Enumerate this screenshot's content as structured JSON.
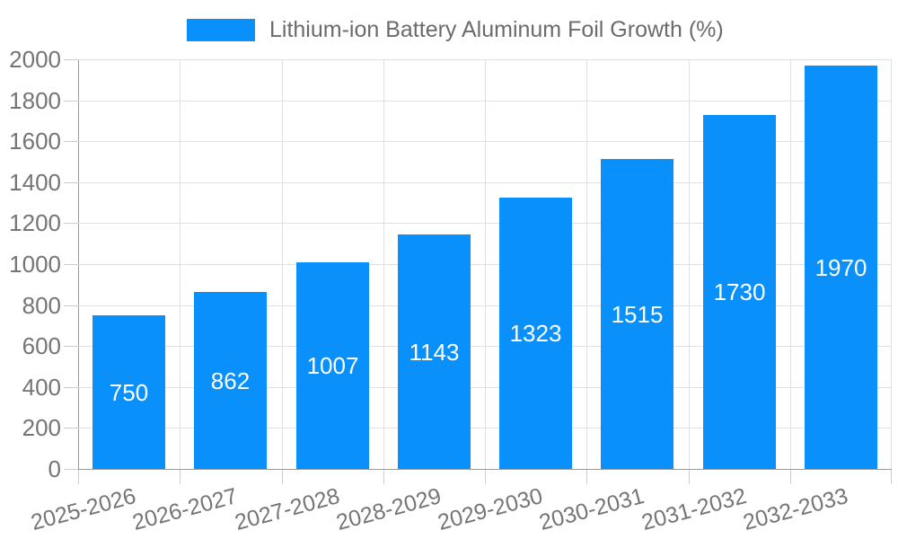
{
  "chart_data": {
    "type": "bar",
    "title": "Lithium-ion Battery Aluminum Foil Growth (%)",
    "categories": [
      "2025-2026",
      "2026-2027",
      "2027-2028",
      "2028-2029",
      "2029-2030",
      "2030-2031",
      "2031-2032",
      "2032-2033"
    ],
    "values": [
      750,
      862,
      1007,
      1143,
      1323,
      1515,
      1730,
      1970
    ],
    "series": [
      {
        "name": "Lithium-ion Battery Aluminum Foil Growth (%)",
        "values": [
          750,
          862,
          1007,
          1143,
          1323,
          1515,
          1730,
          1970
        ]
      }
    ],
    "xlabel": "",
    "ylabel": "",
    "ylim": [
      0,
      2000
    ],
    "ytick_step": 200,
    "yticks": [
      0,
      200,
      400,
      600,
      800,
      1000,
      1200,
      1400,
      1600,
      1800,
      2000
    ],
    "grid": true,
    "legend_position": "top-center",
    "x_label_rotation_deg": -15,
    "value_labels_position": "inside-center",
    "colors": {
      "bar": "#0990FA",
      "value_label": "#FFFFFF",
      "axis_text": "#757575",
      "legend_text": "#6B6B6B",
      "grid_line": "#E0E0E0",
      "axis_line": "#999999",
      "tick_mark": "#CCCCCC",
      "background": "#FFFFFF"
    }
  }
}
